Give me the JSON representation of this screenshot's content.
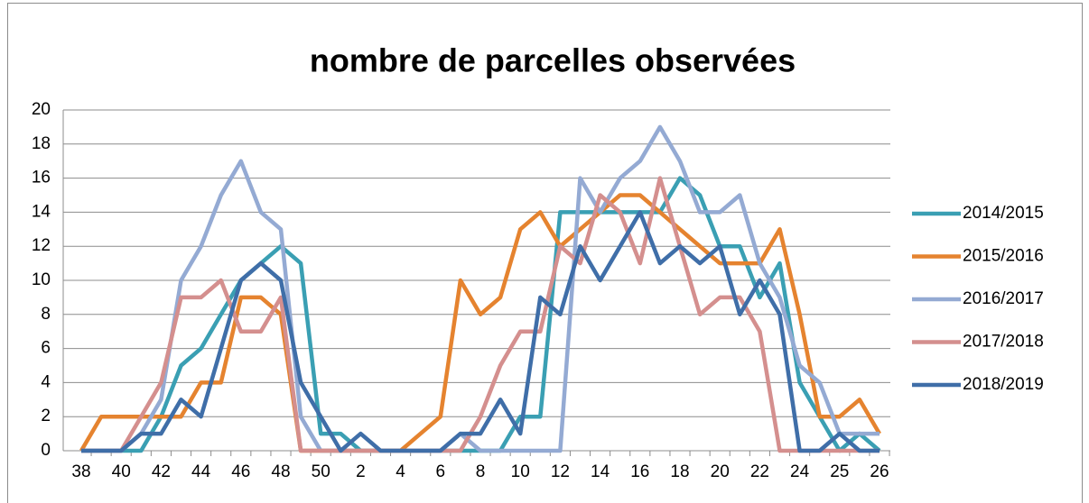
{
  "chart_data": {
    "type": "line",
    "title": "nombre de parcelles observées",
    "categories": [
      38,
      null,
      40,
      null,
      42,
      null,
      44,
      null,
      46,
      null,
      48,
      null,
      50,
      null,
      2,
      null,
      4,
      null,
      6,
      null,
      8,
      null,
      10,
      null,
      12,
      null,
      14,
      null,
      16,
      null,
      18,
      null,
      20,
      null,
      22,
      null,
      24,
      null,
      25,
      null,
      26
    ],
    "series": [
      {
        "name": "2014/2015",
        "color": "#3a9fb3",
        "values": [
          0,
          0,
          0,
          0,
          2,
          5,
          6,
          8,
          10,
          11,
          12,
          11,
          1,
          1,
          0,
          0,
          0,
          0,
          0,
          0,
          0,
          0,
          2,
          2,
          14,
          14,
          14,
          14,
          14,
          14,
          16,
          15,
          12,
          12,
          9,
          11,
          4,
          2,
          0,
          1,
          0
        ]
      },
      {
        "name": "2015/2016",
        "color": "#e5832f",
        "values": [
          0,
          2,
          2,
          2,
          2,
          2,
          4,
          4,
          9,
          9,
          8,
          0,
          0,
          0,
          0,
          0,
          0,
          1,
          2,
          10,
          8,
          9,
          13,
          14,
          12,
          13,
          14,
          15,
          15,
          14,
          13,
          12,
          11,
          11,
          11,
          13,
          8,
          2,
          2,
          3,
          1
        ]
      },
      {
        "name": "2016/2017",
        "color": "#94aad3",
        "values": [
          0,
          0,
          0,
          1,
          3,
          10,
          12,
          15,
          17,
          14,
          13,
          2,
          0,
          0,
          0,
          0,
          0,
          0,
          0,
          1,
          0,
          0,
          0,
          0,
          0,
          16,
          14,
          16,
          17,
          19,
          17,
          14,
          14,
          15,
          11,
          9,
          5,
          4,
          1,
          1,
          1
        ]
      },
      {
        "name": "2017/2018",
        "color": "#d48f8e",
        "values": [
          0,
          0,
          0,
          2,
          4,
          9,
          9,
          10,
          7,
          7,
          9,
          0,
          0,
          0,
          0,
          0,
          0,
          0,
          0,
          0,
          2,
          5,
          7,
          7,
          12,
          11,
          15,
          14,
          11,
          16,
          12,
          8,
          9,
          9,
          7,
          0,
          0,
          0,
          0,
          0,
          0
        ]
      },
      {
        "name": "2018/2019",
        "color": "#3f6ea8",
        "values": [
          0,
          0,
          0,
          1,
          1,
          3,
          2,
          6,
          10,
          11,
          10,
          4,
          2,
          0,
          1,
          0,
          0,
          0,
          0,
          1,
          1,
          3,
          1,
          9,
          8,
          12,
          10,
          12,
          14,
          11,
          12,
          11,
          12,
          8,
          10,
          8,
          0,
          0,
          1,
          0,
          0
        ]
      }
    ],
    "ylim": [
      0,
      20
    ],
    "yticks": [
      0,
      2,
      4,
      6,
      8,
      10,
      12,
      14,
      16,
      18,
      20
    ],
    "grid": true,
    "legend": "right"
  }
}
